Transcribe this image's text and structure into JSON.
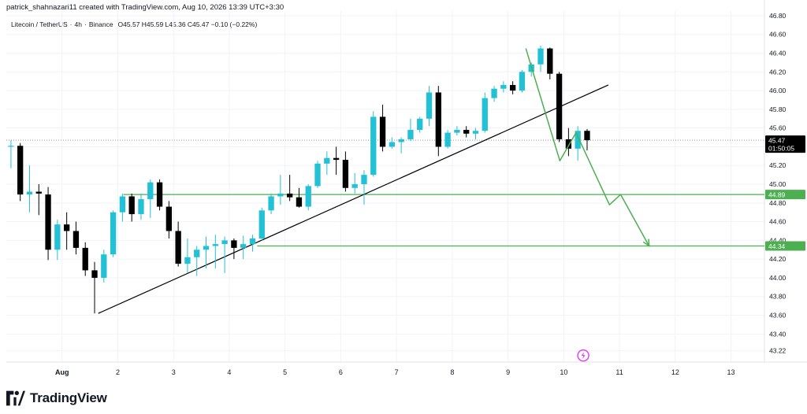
{
  "header": {
    "credit": "patrick_shahnazari11 created with TradingView.com, Aug 10, 2026 13:39 UTC+3:30"
  },
  "legend": {
    "symbol": "Litecoin / TetherUS",
    "interval": "4h",
    "exchange": "Binance",
    "ohlc": "O45.57  H45.59  L45.36  C45.47  −0.10 (−0.22%)"
  },
  "footer": {
    "brand": "TradingView",
    "logo_icon": "tradingview-logo-icon"
  },
  "colors": {
    "up": "#22C1D6",
    "down": "#000000",
    "level": "#4CAF50",
    "trendline": "#000000",
    "path": "#4CAF50",
    "grid": "#F0F3FA",
    "price_label_bg": "#000000"
  },
  "chart_data": {
    "type": "candlestick",
    "grid": true,
    "y_axis": {
      "position": "right",
      "range": [
        43.1,
        46.85
      ],
      "ticks": [
        "43.22",
        "43.40",
        "43.60",
        "43.80",
        "44.00",
        "44.20",
        "44.40",
        "44.60",
        "44.80",
        "45.00",
        "45.20",
        "45.40",
        "45.60",
        "45.80",
        "46.00",
        "46.20",
        "46.40",
        "46.60",
        "46.80"
      ]
    },
    "x_axis": {
      "range_days": [
        0,
        13.6
      ],
      "ticks": [
        {
          "label": "Aug",
          "day": 1
        },
        {
          "label": "2",
          "day": 2
        },
        {
          "label": "3",
          "day": 3
        },
        {
          "label": "4",
          "day": 4
        },
        {
          "label": "5",
          "day": 5
        },
        {
          "label": "6",
          "day": 6
        },
        {
          "label": "7",
          "day": 7
        },
        {
          "label": "8",
          "day": 8
        },
        {
          "label": "9",
          "day": 9
        },
        {
          "label": "10",
          "day": 10
        },
        {
          "label": "11",
          "day": 11
        },
        {
          "label": "12",
          "day": 12
        },
        {
          "label": "13",
          "day": 13
        }
      ]
    },
    "candle_interval_days": 0.1667,
    "candles_start_day": 0.0,
    "candles": [
      {
        "o": 45.41,
        "h": 45.47,
        "l": 45.17,
        "c": 45.41
      },
      {
        "o": 45.41,
        "h": 45.44,
        "l": 44.82,
        "c": 44.89
      },
      {
        "o": 44.89,
        "h": 45.2,
        "l": 44.7,
        "c": 44.92
      },
      {
        "o": 44.92,
        "h": 45.0,
        "l": 44.67,
        "c": 44.9
      },
      {
        "o": 44.89,
        "h": 44.97,
        "l": 44.19,
        "c": 44.3
      },
      {
        "o": 44.3,
        "h": 44.62,
        "l": 44.19,
        "c": 44.57
      },
      {
        "o": 44.57,
        "h": 44.7,
        "l": 44.3,
        "c": 44.5
      },
      {
        "o": 44.5,
        "h": 44.6,
        "l": 44.25,
        "c": 44.32
      },
      {
        "o": 44.32,
        "h": 44.38,
        "l": 44.02,
        "c": 44.08
      },
      {
        "o": 44.08,
        "h": 44.17,
        "l": 43.62,
        "c": 44.0
      },
      {
        "o": 44.0,
        "h": 44.3,
        "l": 43.95,
        "c": 44.25
      },
      {
        "o": 44.25,
        "h": 44.72,
        "l": 44.22,
        "c": 44.7
      },
      {
        "o": 44.7,
        "h": 44.9,
        "l": 44.6,
        "c": 44.87
      },
      {
        "o": 44.87,
        "h": 44.9,
        "l": 44.6,
        "c": 44.68
      },
      {
        "o": 44.68,
        "h": 44.9,
        "l": 44.62,
        "c": 44.84
      },
      {
        "o": 44.84,
        "h": 45.05,
        "l": 44.64,
        "c": 45.02
      },
      {
        "o": 45.02,
        "h": 45.05,
        "l": 44.72,
        "c": 44.76
      },
      {
        "o": 44.76,
        "h": 44.82,
        "l": 44.42,
        "c": 44.5
      },
      {
        "o": 44.5,
        "h": 44.6,
        "l": 44.12,
        "c": 44.15
      },
      {
        "o": 44.15,
        "h": 44.42,
        "l": 44.05,
        "c": 44.22
      },
      {
        "o": 44.22,
        "h": 44.34,
        "l": 44.02,
        "c": 44.3
      },
      {
        "o": 44.3,
        "h": 44.44,
        "l": 44.1,
        "c": 44.34
      },
      {
        "o": 44.34,
        "h": 44.46,
        "l": 44.1,
        "c": 44.36
      },
      {
        "o": 44.36,
        "h": 44.44,
        "l": 44.05,
        "c": 44.4
      },
      {
        "o": 44.4,
        "h": 44.42,
        "l": 44.2,
        "c": 44.32
      },
      {
        "o": 44.32,
        "h": 44.45,
        "l": 44.2,
        "c": 44.36
      },
      {
        "o": 44.36,
        "h": 44.46,
        "l": 44.28,
        "c": 44.42
      },
      {
        "o": 44.42,
        "h": 44.75,
        "l": 44.4,
        "c": 44.72
      },
      {
        "o": 44.72,
        "h": 44.9,
        "l": 44.68,
        "c": 44.87
      },
      {
        "o": 44.87,
        "h": 45.1,
        "l": 44.78,
        "c": 44.9
      },
      {
        "o": 44.9,
        "h": 45.1,
        "l": 44.82,
        "c": 44.86
      },
      {
        "o": 44.86,
        "h": 44.96,
        "l": 44.75,
        "c": 44.76
      },
      {
        "o": 44.76,
        "h": 45.0,
        "l": 44.72,
        "c": 44.98
      },
      {
        "o": 44.98,
        "h": 45.25,
        "l": 44.96,
        "c": 45.22
      },
      {
        "o": 45.22,
        "h": 45.35,
        "l": 45.1,
        "c": 45.28
      },
      {
        "o": 45.28,
        "h": 45.4,
        "l": 45.1,
        "c": 45.26
      },
      {
        "o": 45.26,
        "h": 45.35,
        "l": 44.92,
        "c": 44.96
      },
      {
        "o": 44.96,
        "h": 45.12,
        "l": 44.9,
        "c": 45.0
      },
      {
        "o": 45.0,
        "h": 45.15,
        "l": 44.78,
        "c": 45.1
      },
      {
        "o": 45.1,
        "h": 45.78,
        "l": 45.08,
        "c": 45.72
      },
      {
        "o": 45.72,
        "h": 45.85,
        "l": 45.35,
        "c": 45.4
      },
      {
        "o": 45.4,
        "h": 45.5,
        "l": 45.38,
        "c": 45.45
      },
      {
        "o": 45.45,
        "h": 45.5,
        "l": 45.33,
        "c": 45.48
      },
      {
        "o": 45.48,
        "h": 45.7,
        "l": 45.46,
        "c": 45.58
      },
      {
        "o": 45.58,
        "h": 45.72,
        "l": 45.55,
        "c": 45.7
      },
      {
        "o": 45.7,
        "h": 46.05,
        "l": 45.62,
        "c": 45.98
      },
      {
        "o": 45.98,
        "h": 46.05,
        "l": 45.3,
        "c": 45.4
      },
      {
        "o": 45.4,
        "h": 45.58,
        "l": 45.38,
        "c": 45.55
      },
      {
        "o": 45.55,
        "h": 45.62,
        "l": 45.52,
        "c": 45.58
      },
      {
        "o": 45.58,
        "h": 45.62,
        "l": 45.5,
        "c": 45.54
      },
      {
        "o": 45.54,
        "h": 45.6,
        "l": 45.48,
        "c": 45.57
      },
      {
        "o": 45.57,
        "h": 45.98,
        "l": 45.55,
        "c": 45.92
      },
      {
        "o": 45.92,
        "h": 46.05,
        "l": 45.88,
        "c": 46.02
      },
      {
        "o": 46.02,
        "h": 46.1,
        "l": 45.98,
        "c": 46.06
      },
      {
        "o": 46.06,
        "h": 46.1,
        "l": 45.96,
        "c": 46.0
      },
      {
        "o": 46.0,
        "h": 46.22,
        "l": 45.98,
        "c": 46.2
      },
      {
        "o": 46.2,
        "h": 46.3,
        "l": 46.15,
        "c": 46.28
      },
      {
        "o": 46.28,
        "h": 46.48,
        "l": 46.2,
        "c": 46.45
      },
      {
        "o": 46.45,
        "h": 46.46,
        "l": 46.12,
        "c": 46.18
      },
      {
        "o": 46.18,
        "h": 46.2,
        "l": 45.45,
        "c": 45.48
      },
      {
        "o": 45.48,
        "h": 45.6,
        "l": 45.3,
        "c": 45.38
      },
      {
        "o": 45.38,
        "h": 45.62,
        "l": 45.25,
        "c": 45.57
      },
      {
        "o": 45.57,
        "h": 45.59,
        "l": 45.36,
        "c": 45.47
      }
    ],
    "last_price": {
      "value": "45.47",
      "countdown": "01:50:05"
    },
    "levels": [
      {
        "value": 44.89,
        "label": "44.89",
        "start_day": 2.1
      },
      {
        "value": 44.34,
        "label": 44.34,
        "start_day": 4.5
      }
    ],
    "trendline": {
      "points": [
        {
          "day": 1.65,
          "price": 43.62
        },
        {
          "day": 10.8,
          "price": 46.06
        }
      ]
    },
    "projection_path": {
      "points": [
        {
          "day": 9.32,
          "price": 46.45
        },
        {
          "day": 9.93,
          "price": 45.25
        },
        {
          "day": 10.22,
          "price": 45.55
        },
        {
          "day": 10.82,
          "price": 44.78
        },
        {
          "day": 11.02,
          "price": 44.89
        },
        {
          "day": 11.53,
          "price": 44.34
        }
      ]
    },
    "event_marker": {
      "icon": "lightning-bolt-icon",
      "day": 10.35,
      "price": 43.17
    }
  }
}
